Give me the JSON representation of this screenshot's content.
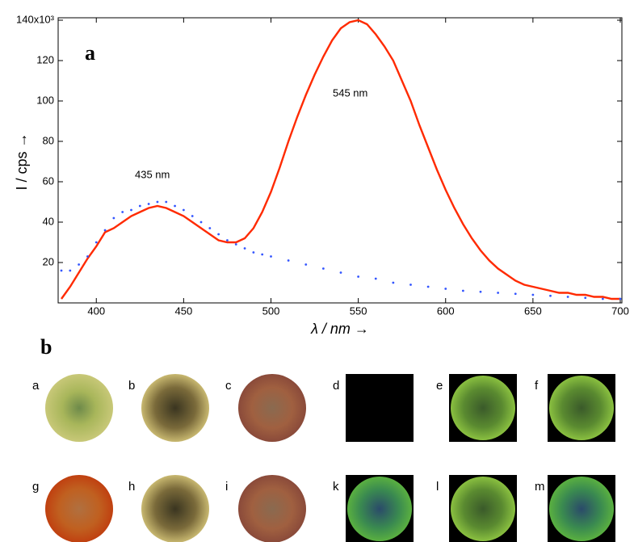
{
  "chart_data": {
    "type": "line",
    "panel_label": "a",
    "x_label": "λ / nm  →",
    "y_label": "I / cps  →",
    "annotations": [
      "435 nm",
      "545 nm"
    ],
    "xlim": [
      380,
      700
    ],
    "ylim": [
      0,
      140
    ],
    "xticks": [
      400,
      450,
      500,
      550,
      600,
      650,
      700
    ],
    "yticks": [
      20,
      40,
      60,
      80,
      100,
      120,
      {
        "value": 140,
        "label": "140x10³"
      }
    ],
    "series": [
      {
        "color": "#ff2a00",
        "style": "line",
        "x": [
          380,
          385,
          390,
          395,
          400,
          405,
          410,
          415,
          420,
          425,
          430,
          435,
          440,
          445,
          450,
          455,
          460,
          465,
          470,
          475,
          480,
          485,
          490,
          495,
          500,
          505,
          510,
          515,
          520,
          525,
          530,
          535,
          540,
          545,
          550,
          555,
          560,
          565,
          570,
          575,
          580,
          585,
          590,
          595,
          600,
          605,
          610,
          615,
          620,
          625,
          630,
          635,
          640,
          645,
          650,
          655,
          660,
          665,
          670,
          675,
          680,
          685,
          690,
          695,
          700
        ],
        "values": [
          2,
          8,
          15,
          22,
          28,
          35,
          37,
          40,
          43,
          45,
          47,
          48,
          47,
          45,
          43,
          40,
          37,
          34,
          31,
          30,
          30,
          32,
          37,
          45,
          55,
          67,
          80,
          92,
          103,
          113,
          122,
          130,
          136,
          139,
          140,
          138,
          133,
          127,
          120,
          110,
          100,
          88,
          77,
          66,
          56,
          47,
          39,
          32,
          26,
          21,
          17,
          14,
          11,
          9,
          8,
          7,
          6,
          5,
          5,
          4,
          4,
          3,
          3,
          2,
          2
        ]
      },
      {
        "color": "#3355ff",
        "style": "dots",
        "x": [
          380,
          385,
          390,
          395,
          400,
          405,
          410,
          415,
          420,
          425,
          430,
          435,
          440,
          445,
          450,
          455,
          460,
          465,
          470,
          475,
          480,
          485,
          490,
          495,
          500,
          510,
          520,
          530,
          540,
          550,
          560,
          570,
          580,
          590,
          600,
          610,
          620,
          630,
          640,
          650,
          660,
          670,
          680,
          690,
          700
        ],
        "values": [
          16,
          16,
          19,
          23,
          30,
          36,
          42,
          45,
          46,
          48,
          49,
          50,
          50,
          48,
          46,
          43,
          40,
          37,
          34,
          31,
          29,
          27,
          25,
          24,
          23,
          21,
          19,
          17,
          15,
          13,
          12,
          10,
          9,
          8,
          7,
          6,
          5.5,
          5,
          4.5,
          4,
          3.5,
          3,
          2.5,
          2,
          2
        ]
      }
    ]
  },
  "panel_b": {
    "label": "b",
    "images": [
      "a",
      "b",
      "c",
      "d",
      "e",
      "f",
      "g",
      "h",
      "i",
      "k",
      "l",
      "m"
    ]
  }
}
